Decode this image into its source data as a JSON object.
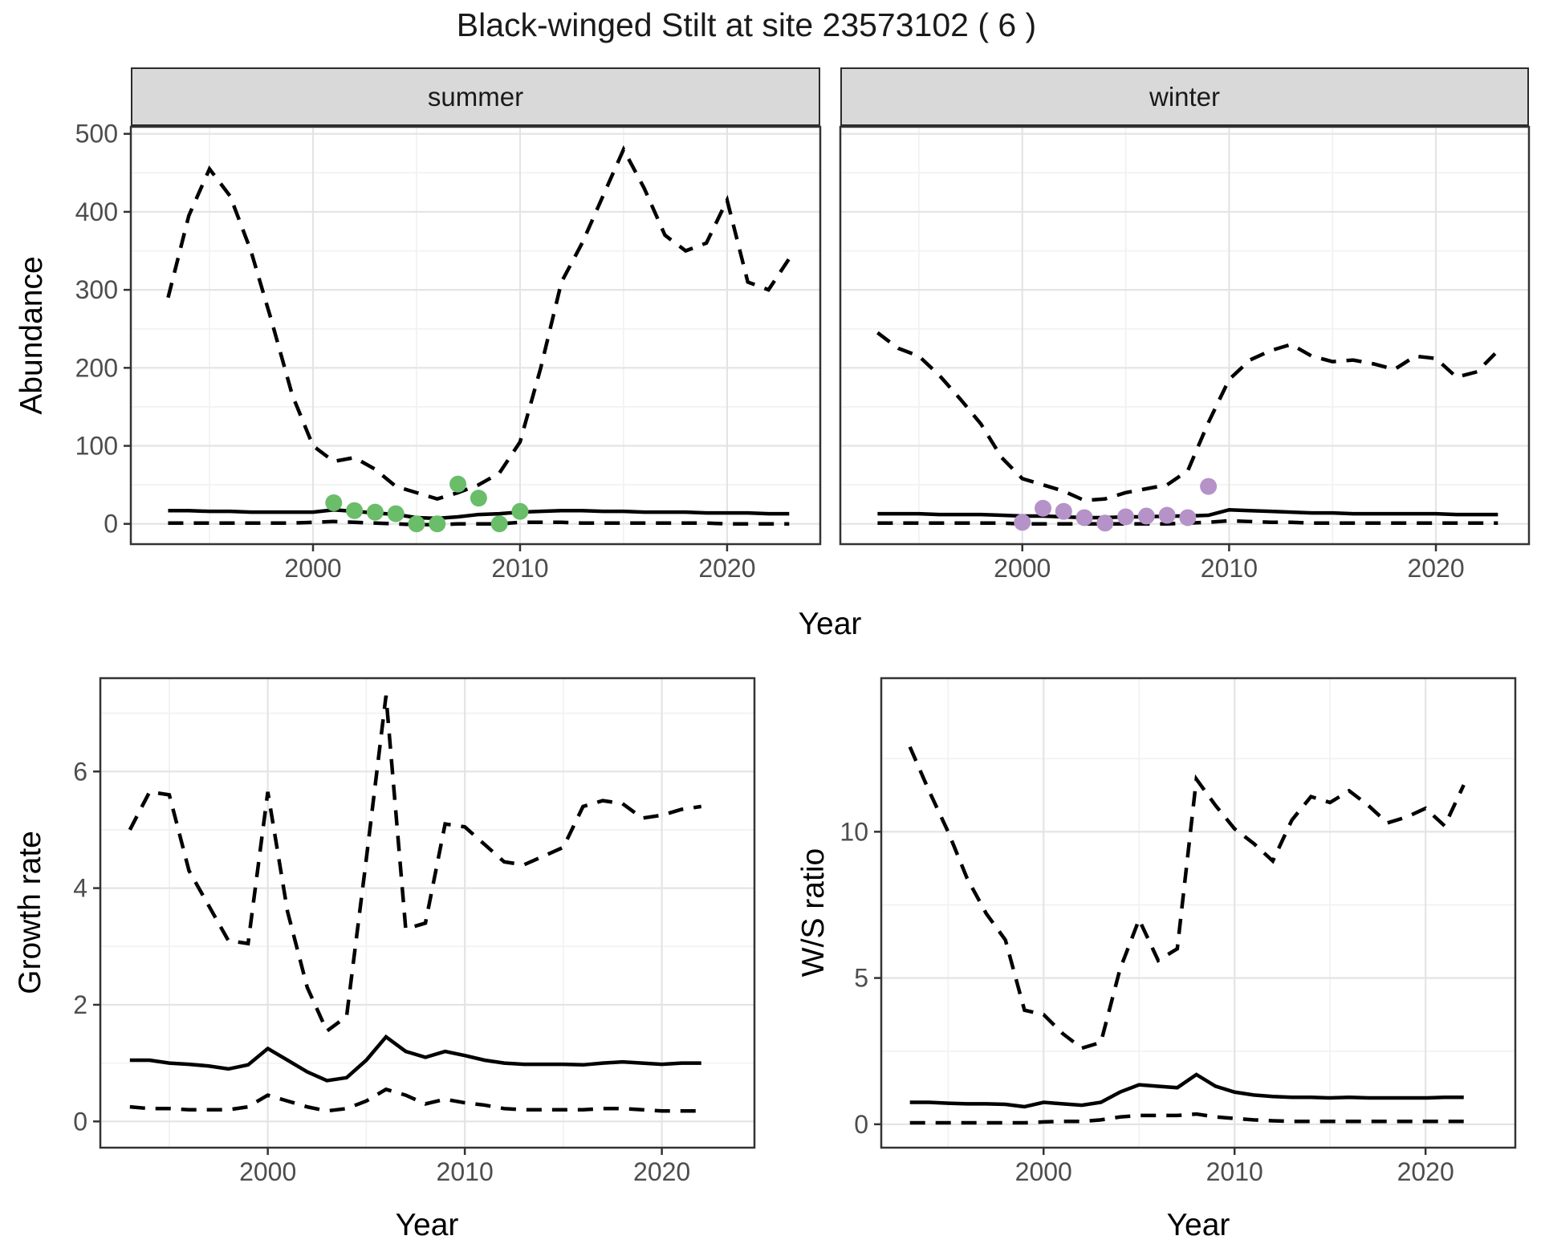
{
  "title": "Black-winged Stilt at site 23573102 ( 6 )",
  "theme": {
    "panel_bg": "#ffffff",
    "strip_bg": "#d9d9d9",
    "grid_major": "#e4e4e4",
    "grid_minor": "#f2f2f2",
    "line_color": "#000000",
    "border_color": "#333333",
    "tick_label_color": "#4d4d4d",
    "summer_point_color": "#6abd69",
    "winter_point_color": "#b592c8"
  },
  "chart_data": [
    {
      "type": "line",
      "facet": "summer",
      "xlabel": "Year",
      "ylabel": "Abundance",
      "xlim": [
        1991.2,
        2024.5
      ],
      "ylim": [
        -26,
        509
      ],
      "xticks": [
        2000,
        2010,
        2020
      ],
      "yticks": [
        0,
        100,
        200,
        300,
        400,
        500
      ],
      "grid": true,
      "x": [
        1993,
        1994,
        1995,
        1996,
        1997,
        1998,
        1999,
        2000,
        2001,
        2002,
        2003,
        2004,
        2005,
        2006,
        2007,
        2008,
        2009,
        2010,
        2011,
        2012,
        2013,
        2014,
        2015,
        2016,
        2017,
        2018,
        2019,
        2020,
        2021,
        2022,
        2023
      ],
      "series": [
        {
          "name": "upper-ci",
          "style": "dashed",
          "values": [
            290,
            395,
            455,
            420,
            350,
            260,
            165,
            100,
            80,
            85,
            70,
            48,
            40,
            32,
            40,
            50,
            65,
            105,
            200,
            310,
            360,
            420,
            480,
            430,
            370,
            350,
            360,
            415,
            310,
            300,
            340
          ]
        },
        {
          "name": "median",
          "style": "solid",
          "values": [
            17,
            17,
            16,
            16,
            15,
            15,
            15,
            15,
            18,
            16,
            14,
            12,
            8,
            7,
            9,
            12,
            13,
            15,
            16,
            17,
            17,
            16,
            16,
            15,
            15,
            15,
            14,
            14,
            14,
            13,
            13
          ]
        },
        {
          "name": "lower-ci",
          "style": "dashed",
          "values": [
            1,
            1,
            1,
            1,
            1,
            1,
            1,
            2,
            3,
            2,
            1,
            0,
            -1,
            -1,
            0,
            0,
            0,
            2,
            2,
            2,
            1,
            1,
            1,
            1,
            1,
            1,
            1,
            0,
            0,
            0,
            0
          ]
        }
      ],
      "points": {
        "name": "observed-summer-counts",
        "color": "#6abd69",
        "x": [
          2001,
          2002,
          2003,
          2004,
          2005,
          2006,
          2007,
          2008,
          2009,
          2010
        ],
        "y": [
          27,
          17,
          15,
          13,
          0,
          0,
          51,
          33,
          0,
          16
        ]
      }
    },
    {
      "type": "line",
      "facet": "winter",
      "xlabel": "Year",
      "ylabel": "Abundance",
      "xlim": [
        1991.2,
        2024.5
      ],
      "ylim": [
        -26,
        509
      ],
      "xticks": [
        2000,
        2010,
        2020
      ],
      "yticks": [
        0,
        100,
        200,
        300,
        400,
        500
      ],
      "grid": true,
      "x": [
        1993,
        1994,
        1995,
        1996,
        1997,
        1998,
        1999,
        2000,
        2001,
        2002,
        2003,
        2004,
        2005,
        2006,
        2007,
        2008,
        2009,
        2010,
        2011,
        2012,
        2013,
        2014,
        2015,
        2016,
        2017,
        2018,
        2019,
        2020,
        2021,
        2022,
        2023
      ],
      "series": [
        {
          "name": "upper-ci",
          "style": "dashed",
          "values": [
            245,
            225,
            215,
            190,
            160,
            128,
            85,
            58,
            50,
            42,
            30,
            32,
            40,
            45,
            50,
            68,
            130,
            185,
            210,
            222,
            230,
            215,
            208,
            210,
            205,
            198,
            215,
            212,
            188,
            195,
            222
          ]
        },
        {
          "name": "median",
          "style": "solid",
          "values": [
            13,
            13,
            13,
            12,
            12,
            12,
            11,
            10,
            10,
            9,
            8,
            8,
            9,
            9,
            10,
            10,
            11,
            18,
            17,
            16,
            15,
            14,
            14,
            13,
            13,
            13,
            13,
            13,
            12,
            12,
            12
          ]
        },
        {
          "name": "lower-ci",
          "style": "dashed",
          "values": [
            1,
            1,
            1,
            1,
            1,
            1,
            1,
            0,
            0,
            0,
            0,
            0,
            0,
            0,
            0,
            1,
            2,
            4,
            3,
            2,
            2,
            1,
            1,
            1,
            1,
            1,
            1,
            1,
            1,
            1,
            1
          ]
        }
      ],
      "points": {
        "name": "observed-winter-counts",
        "color": "#b592c8",
        "x": [
          2000,
          2001,
          2002,
          2003,
          2004,
          2005,
          2006,
          2007,
          2008,
          2009
        ],
        "y": [
          2,
          20,
          16,
          8,
          1,
          9,
          10,
          11,
          8,
          48
        ]
      }
    },
    {
      "type": "line",
      "facet": "",
      "xlabel": "Year",
      "ylabel": "Growth rate",
      "xlim": [
        1991.5,
        2024.7
      ],
      "ylim": [
        -0.45,
        7.6
      ],
      "xticks": [
        2000,
        2010,
        2020
      ],
      "yticks": [
        0,
        2,
        4,
        6
      ],
      "grid": true,
      "x": [
        1993,
        1994,
        1995,
        1996,
        1997,
        1998,
        1999,
        2000,
        2001,
        2002,
        2003,
        2004,
        2005,
        2006,
        2007,
        2008,
        2009,
        2010,
        2011,
        2012,
        2013,
        2014,
        2015,
        2016,
        2017,
        2018,
        2019,
        2020,
        2021,
        2022
      ],
      "series": [
        {
          "name": "upper-ci",
          "style": "dashed",
          "values": [
            5.0,
            5.65,
            5.6,
            4.3,
            3.7,
            3.1,
            3.05,
            5.65,
            3.6,
            2.3,
            1.55,
            1.8,
            4.5,
            7.3,
            3.3,
            3.4,
            5.1,
            5.05,
            4.75,
            4.45,
            4.4,
            4.55,
            4.7,
            5.4,
            5.5,
            5.45,
            5.2,
            5.25,
            5.35,
            5.4
          ]
        },
        {
          "name": "median",
          "style": "solid",
          "values": [
            1.05,
            1.05,
            1.0,
            0.98,
            0.95,
            0.9,
            0.97,
            1.25,
            1.05,
            0.85,
            0.7,
            0.75,
            1.05,
            1.45,
            1.2,
            1.1,
            1.2,
            1.13,
            1.05,
            1.0,
            0.98,
            0.98,
            0.98,
            0.97,
            1.0,
            1.02,
            1.0,
            0.98,
            1.0,
            1.0
          ]
        },
        {
          "name": "lower-ci",
          "style": "dashed",
          "values": [
            0.25,
            0.22,
            0.22,
            0.2,
            0.2,
            0.2,
            0.25,
            0.45,
            0.35,
            0.25,
            0.18,
            0.22,
            0.35,
            0.55,
            0.45,
            0.3,
            0.38,
            0.32,
            0.28,
            0.22,
            0.2,
            0.2,
            0.2,
            0.2,
            0.22,
            0.22,
            0.2,
            0.18,
            0.18,
            0.18
          ]
        }
      ],
      "points": null
    },
    {
      "type": "line",
      "facet": "",
      "xlabel": "Year",
      "ylabel": "W/S ratio",
      "xlim": [
        1991.5,
        2024.7
      ],
      "ylim": [
        -0.8,
        15.25
      ],
      "xticks": [
        2000,
        2010,
        2020
      ],
      "yticks": [
        0,
        5,
        10
      ],
      "grid": true,
      "x": [
        1993,
        1994,
        1995,
        1996,
        1997,
        1998,
        1999,
        2000,
        2001,
        2002,
        2003,
        2004,
        2005,
        2006,
        2007,
        2008,
        2009,
        2010,
        2011,
        2012,
        2013,
        2014,
        2015,
        2016,
        2017,
        2018,
        2019,
        2020,
        2021,
        2022
      ],
      "series": [
        {
          "name": "upper-ci",
          "style": "dashed",
          "values": [
            12.9,
            11.4,
            10.0,
            8.4,
            7.2,
            6.3,
            3.9,
            3.75,
            3.1,
            2.6,
            2.8,
            5.3,
            7.0,
            5.6,
            6.0,
            11.8,
            10.9,
            10.1,
            9.6,
            9.0,
            10.4,
            11.2,
            11.0,
            11.4,
            10.9,
            10.3,
            10.5,
            10.8,
            10.2,
            11.6
          ]
        },
        {
          "name": "median",
          "style": "solid",
          "values": [
            0.75,
            0.75,
            0.72,
            0.7,
            0.7,
            0.68,
            0.6,
            0.75,
            0.7,
            0.65,
            0.75,
            1.1,
            1.35,
            1.3,
            1.25,
            1.7,
            1.3,
            1.1,
            1.0,
            0.95,
            0.92,
            0.92,
            0.9,
            0.92,
            0.9,
            0.9,
            0.9,
            0.9,
            0.92,
            0.92
          ]
        },
        {
          "name": "lower-ci",
          "style": "dashed",
          "values": [
            0.05,
            0.05,
            0.05,
            0.05,
            0.05,
            0.05,
            0.05,
            0.08,
            0.1,
            0.1,
            0.15,
            0.25,
            0.3,
            0.3,
            0.3,
            0.35,
            0.25,
            0.2,
            0.15,
            0.12,
            0.1,
            0.1,
            0.1,
            0.1,
            0.1,
            0.1,
            0.1,
            0.1,
            0.1,
            0.1
          ]
        }
      ],
      "points": null
    }
  ]
}
